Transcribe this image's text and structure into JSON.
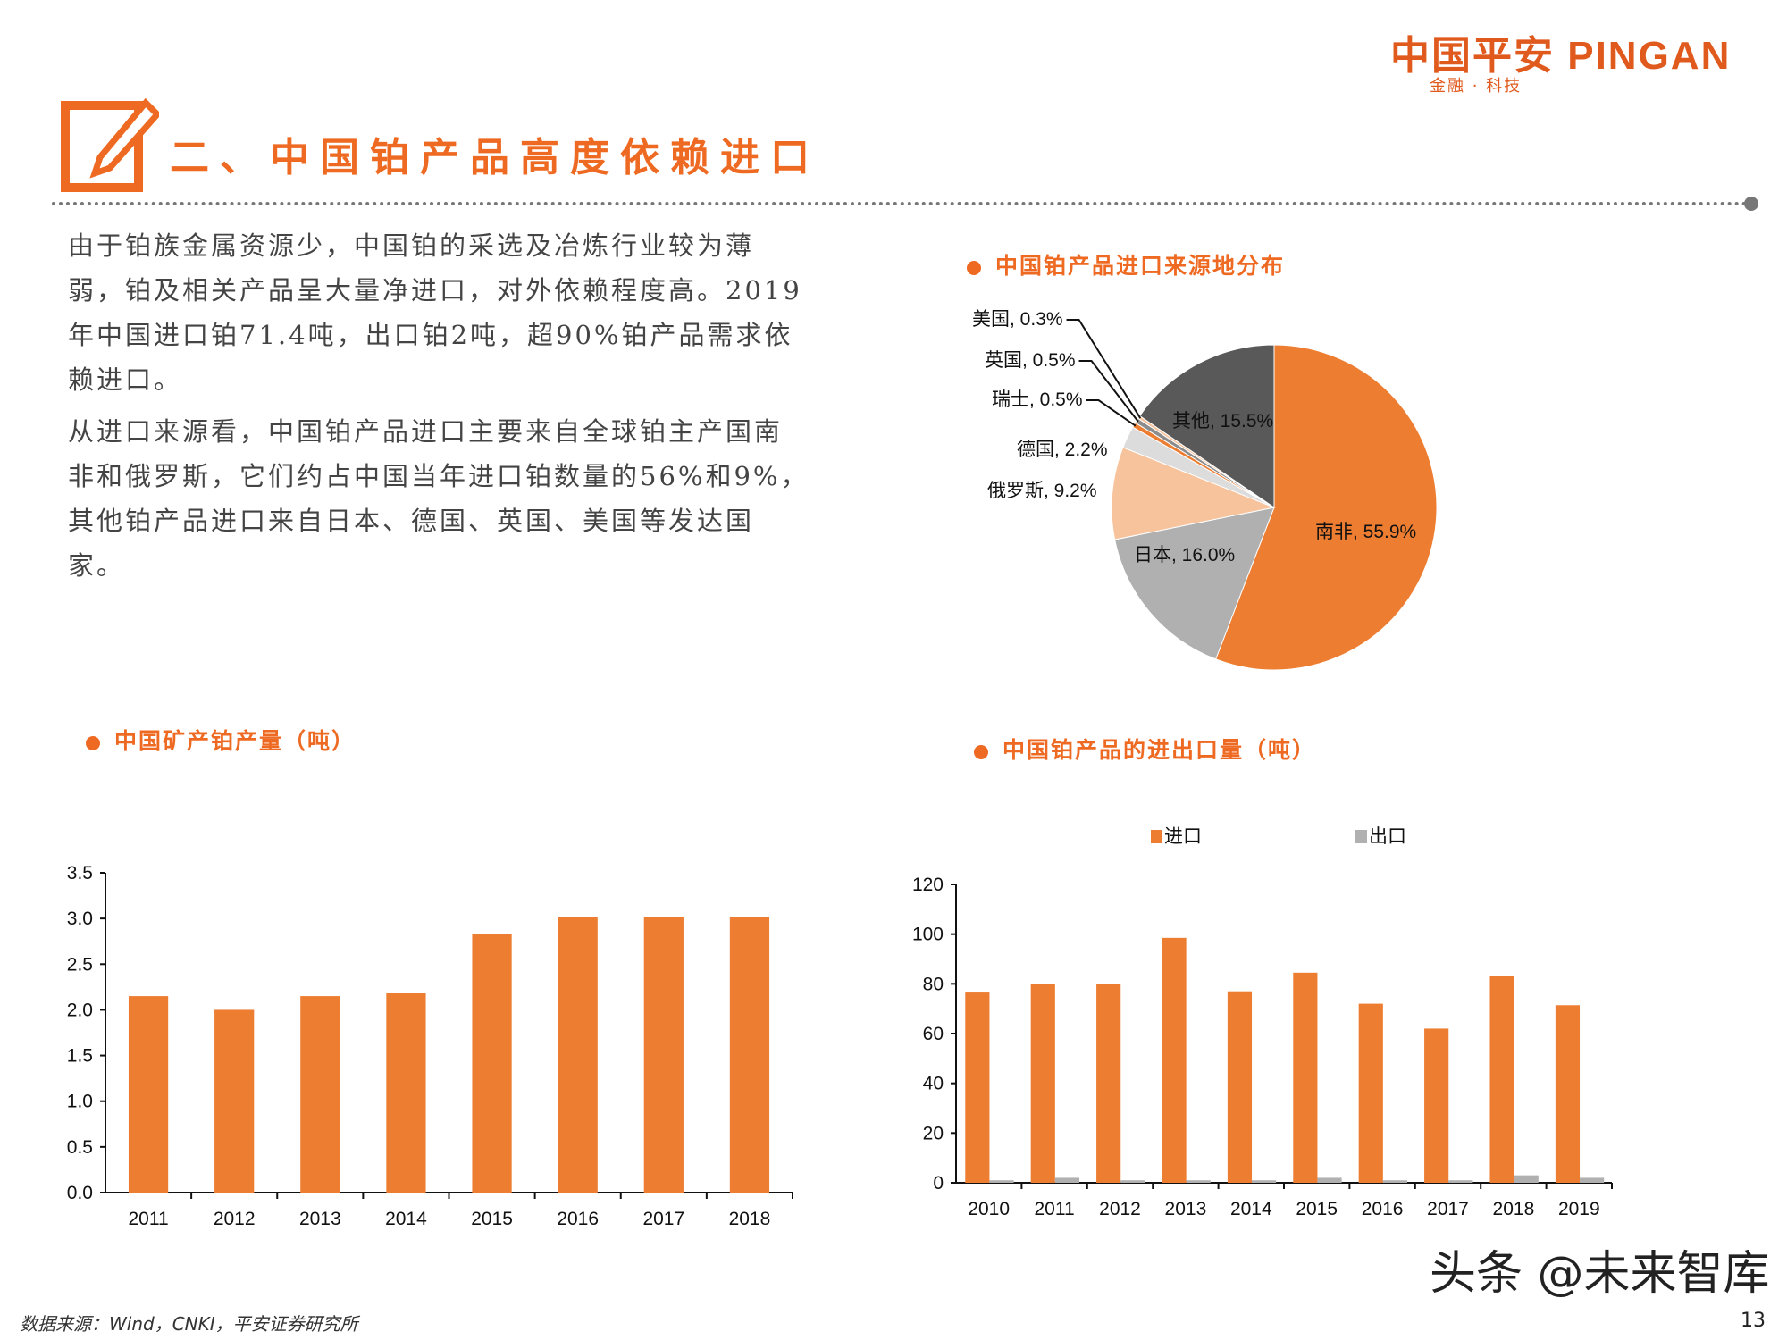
{
  "header": {
    "logo_text": "中国平安 PINGAN",
    "logo_sub": "金融 · 科技",
    "title": "二、中国铂产品高度依赖进口"
  },
  "body": {
    "paragraphs": [
      "由于铂族金属资源少，中国铂的采选及冶炼行业较为薄弱，铂及相关产品呈大量净进口，对外依赖程度高。2019年中国进口铂71.4吨，出口铂2吨，超90%铂产品需求依赖进口。",
      "从进口来源看，中国铂产品进口主要来自全球铂主产国南非和俄罗斯，它们约占中国当年进口铂数量的56%和9%，其他铂产品进口来自日本、德国、英国、美国等发达国家。"
    ]
  },
  "colors": {
    "accent": "#ee6a22",
    "bar": "#ed7d31",
    "export": "#b0b0b0",
    "dark": "#595959"
  },
  "chart_data": [
    {
      "type": "pie",
      "title": "中国铂产品进口来源地分布",
      "slices": [
        {
          "label": "南非, 55.9%",
          "name": "南非",
          "value": 55.9,
          "color": "#ed7d31"
        },
        {
          "label": "日本, 16.0%",
          "name": "日本",
          "value": 16.0,
          "color": "#b0b0b0"
        },
        {
          "label": "俄罗斯, 9.2%",
          "name": "俄罗斯",
          "value": 9.2,
          "color": "#f7c39c"
        },
        {
          "label": "德国, 2.2%",
          "name": "德国",
          "value": 2.2,
          "color": "#dcdcdc"
        },
        {
          "label": "瑞士, 0.5%",
          "name": "瑞士",
          "value": 0.5,
          "color": "#ed7d31"
        },
        {
          "label": "英国, 0.5%",
          "name": "英国",
          "value": 0.5,
          "color": "#8c8c8c"
        },
        {
          "label": "美国, 0.3%",
          "name": "美国",
          "value": 0.3,
          "color": "#f7c39c"
        },
        {
          "label": "其他, 15.5%",
          "name": "其他",
          "value": 15.5,
          "color": "#595959"
        }
      ]
    },
    {
      "type": "bar",
      "title": "中国矿产铂产量（吨）",
      "categories": [
        "2011",
        "2012",
        "2013",
        "2014",
        "2015",
        "2016",
        "2017",
        "2018"
      ],
      "values": [
        2.15,
        2.0,
        2.15,
        2.18,
        2.83,
        3.02,
        3.02,
        3.02
      ],
      "ylim": [
        0,
        3.5
      ],
      "yticks": [
        "0.0",
        "0.5",
        "1.0",
        "1.5",
        "2.0",
        "2.5",
        "3.0",
        "3.5"
      ],
      "grid": false
    },
    {
      "type": "bar",
      "title": "中国铂产品的进出口量（吨）",
      "categories": [
        "2010",
        "2011",
        "2012",
        "2013",
        "2014",
        "2015",
        "2016",
        "2017",
        "2018",
        "2019"
      ],
      "series": [
        {
          "name": "进口",
          "color": "#ed7d31",
          "values": [
            76.5,
            80,
            80,
            98.5,
            77,
            84.5,
            72,
            62,
            83,
            71.4
          ]
        },
        {
          "name": "出口",
          "color": "#b0b0b0",
          "values": [
            1,
            2,
            1,
            1,
            1,
            2,
            1,
            1,
            3,
            2
          ]
        }
      ],
      "ylim": [
        0,
        120
      ],
      "yticks": [
        "0",
        "20",
        "40",
        "60",
        "80",
        "100",
        "120"
      ],
      "legend": "top",
      "grid": false
    }
  ],
  "footer": {
    "source": "数据来源：Wind，CNKI，平安证券研究所",
    "watermark": "头条 @未来智库",
    "page": "13"
  }
}
